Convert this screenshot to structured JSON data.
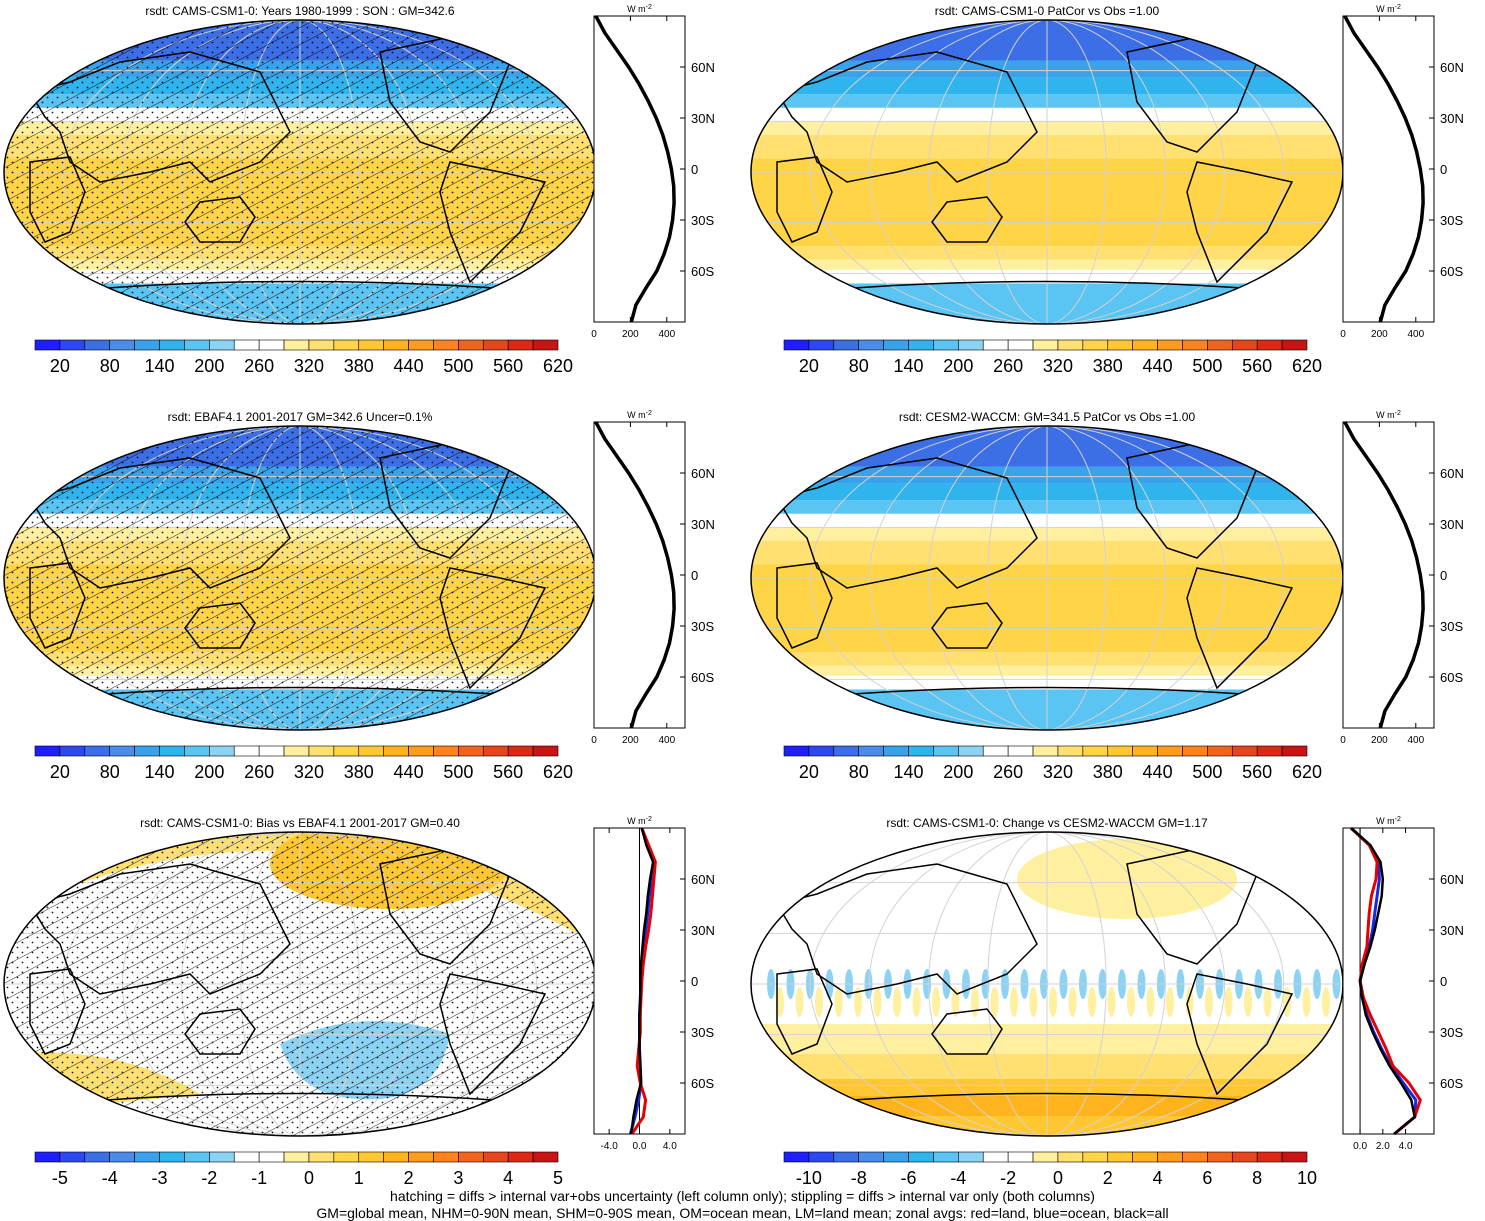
{
  "footer": {
    "line1": "hatching = diffs > internal var+obs uncertainty (left column only); stippling = diffs > internal var only (both columns)",
    "line2": "GM=global mean, NHM=0-90N mean, SHM=0-90S mean, OM=ocean mean, LM=land mean; zonal avgs: red=land, blue=ocean, black=all"
  },
  "colors": {
    "full_scale": [
      "#1e1eff",
      "#2d48f0",
      "#3c6ee6",
      "#4a8ce8",
      "#3aa2ea",
      "#30b4ee",
      "#5ac4f2",
      "#8cd2f2",
      "#ffffff",
      "#ffffff",
      "#fff0a0",
      "#ffe070",
      "#ffd446",
      "#ffc832",
      "#ffb41e",
      "#ff9b1e",
      "#ff821e",
      "#f0641e",
      "#e6461e",
      "#dc2814",
      "#c81414"
    ],
    "bias_scale": [
      "#1e1eff",
      "#2d48f0",
      "#3c6ee6",
      "#4a8ce8",
      "#3aa2ea",
      "#30b4ee",
      "#5ac4f2",
      "#8cd2f2",
      "#ffffff",
      "#ffffff",
      "#fff0a0",
      "#ffe070",
      "#ffd446",
      "#ffc832",
      "#ffb41e",
      "#ff9b1e",
      "#ff821e",
      "#f0641e",
      "#e6461e",
      "#dc2814",
      "#c81414"
    ],
    "zonal_all": "#000000",
    "zonal_land": "#e60000",
    "zonal_ocean": "#1428e6"
  },
  "panels": [
    {
      "id": "model-climatology",
      "title": "rsdt: CAMS-CSM1-0: Years 1980-1999 : SON : GM=342.6",
      "hatching": true,
      "stippling": true,
      "colorbar_labels": [
        "20",
        "80",
        "140",
        "200",
        "260",
        "320",
        "380",
        "440",
        "500",
        "560",
        "620"
      ],
      "zonal": {
        "unit": "W m",
        "unit_sup": "-2",
        "x_ticks": [
          "0",
          "200",
          "400"
        ],
        "x_range": [
          0,
          500
        ],
        "lat_ticks": [
          "60N",
          "30N",
          "0",
          "30S",
          "60S"
        ]
      }
    },
    {
      "id": "model-vs-obs-patcor",
      "title": "rsdt: CAMS-CSM1-0 PatCor vs Obs =1.00",
      "hatching": false,
      "stippling": false,
      "colorbar_labels": [
        "20",
        "80",
        "140",
        "200",
        "260",
        "320",
        "380",
        "440",
        "500",
        "560",
        "620"
      ],
      "zonal": {
        "unit": "W m",
        "unit_sup": "-2",
        "x_ticks": [
          "0",
          "200",
          "400"
        ],
        "x_range": [
          0,
          500
        ],
        "lat_ticks": [
          "60N",
          "30N",
          "0",
          "30S",
          "60S"
        ]
      }
    },
    {
      "id": "obs-climatology",
      "title": "rsdt: EBAF4.1 2001-2017 GM=342.6 Uncer=0.1%",
      "hatching": true,
      "stippling": true,
      "colorbar_labels": [
        "20",
        "80",
        "140",
        "200",
        "260",
        "320",
        "380",
        "440",
        "500",
        "560",
        "620"
      ],
      "zonal": {
        "unit": "W m",
        "unit_sup": "-2",
        "x_ticks": [
          "0",
          "200",
          "400"
        ],
        "x_range": [
          0,
          500
        ],
        "lat_ticks": [
          "60N",
          "30N",
          "0",
          "30S",
          "60S"
        ]
      }
    },
    {
      "id": "reference-model",
      "title": "rsdt: CESM2-WACCM: GM=341.5 PatCor vs Obs =1.00",
      "hatching": false,
      "stippling": false,
      "colorbar_labels": [
        "20",
        "80",
        "140",
        "200",
        "260",
        "320",
        "380",
        "440",
        "500",
        "560",
        "620"
      ],
      "zonal": {
        "unit": "W m",
        "unit_sup": "-2",
        "x_ticks": [
          "0",
          "200",
          "400"
        ],
        "x_range": [
          0,
          500
        ],
        "lat_ticks": [
          "60N",
          "30N",
          "0",
          "30S",
          "60S"
        ]
      }
    },
    {
      "id": "bias",
      "title": "rsdt: CAMS-CSM1-0: Bias vs EBAF4.1 2001-2017  GM=0.40",
      "hatching": true,
      "stippling": true,
      "colorbar_labels": [
        "-5",
        "-4",
        "-3",
        "-2",
        "-1",
        "0",
        "1",
        "2",
        "3",
        "4",
        "5"
      ],
      "zonal": {
        "unit": "W m",
        "unit_sup": "-2",
        "x_ticks": [
          "-4.0",
          "0.0",
          "4.0"
        ],
        "x_range": [
          -6,
          6
        ],
        "lat_ticks": [
          "60N",
          "30N",
          "0",
          "30S",
          "60S"
        ]
      }
    },
    {
      "id": "change",
      "title": "rsdt: CAMS-CSM1-0: Change vs CESM2-WACCM GM=1.17",
      "hatching": false,
      "stippling": false,
      "colorbar_labels": [
        "-10",
        "-8",
        "-6",
        "-4",
        "-2",
        "0",
        "2",
        "4",
        "6",
        "8",
        "10"
      ],
      "zonal": {
        "unit": "W m",
        "unit_sup": "-2",
        "x_ticks": [
          "0.0",
          "2.0",
          "4.0"
        ],
        "x_range": [
          -1.5,
          6.5
        ],
        "lat_ticks": [
          "60N",
          "30N",
          "0",
          "30S",
          "60S"
        ]
      }
    }
  ],
  "chart_data": [
    {
      "type": "line",
      "panel": "model-climatology",
      "x_label": "W m-2",
      "y_label": "",
      "lat": [
        -90,
        -80,
        -70,
        -60,
        -50,
        -40,
        -30,
        -20,
        -10,
        0,
        10,
        20,
        30,
        40,
        50,
        60,
        70,
        80,
        90
      ],
      "series": [
        {
          "values": [
            205,
            230,
            285,
            345,
            385,
            415,
            432,
            440,
            438,
            425,
            405,
            378,
            342,
            298,
            248,
            190,
            125,
            60,
            10
          ]
        }
      ]
    },
    {
      "type": "line",
      "panel": "model-vs-obs-patcor",
      "x_label": "W m-2",
      "y_label": "",
      "lat": [
        -90,
        -80,
        -70,
        -60,
        -50,
        -40,
        -30,
        -20,
        -10,
        0,
        10,
        20,
        30,
        40,
        50,
        60,
        70,
        80,
        90
      ],
      "series": [
        {
          "values": [
            205,
            230,
            285,
            345,
            385,
            415,
            432,
            440,
            438,
            425,
            405,
            378,
            342,
            298,
            248,
            190,
            125,
            60,
            10
          ]
        }
      ]
    },
    {
      "type": "line",
      "panel": "obs-climatology",
      "x_label": "W m-2",
      "y_label": "",
      "lat": [
        -90,
        -80,
        -70,
        -60,
        -50,
        -40,
        -30,
        -20,
        -10,
        0,
        10,
        20,
        30,
        40,
        50,
        60,
        70,
        80,
        90
      ],
      "series": [
        {
          "values": [
            205,
            230,
            285,
            345,
            385,
            415,
            432,
            440,
            438,
            425,
            405,
            378,
            342,
            298,
            248,
            190,
            125,
            60,
            10
          ]
        }
      ]
    },
    {
      "type": "line",
      "panel": "reference-model",
      "x_label": "W m-2",
      "y_label": "",
      "lat": [
        -90,
        -80,
        -70,
        -60,
        -50,
        -40,
        -30,
        -20,
        -10,
        0,
        10,
        20,
        30,
        40,
        50,
        60,
        70,
        80,
        90
      ],
      "series": [
        {
          "values": [
            205,
            230,
            285,
            345,
            385,
            415,
            432,
            440,
            438,
            425,
            405,
            378,
            342,
            298,
            248,
            190,
            125,
            60,
            10
          ]
        }
      ]
    },
    {
      "type": "line",
      "panel": "bias",
      "x_label": "W m-2",
      "y_label": "",
      "lat": [
        -90,
        -80,
        -70,
        -60,
        -50,
        -40,
        -30,
        -20,
        -10,
        0,
        10,
        20,
        30,
        40,
        50,
        60,
        70,
        80,
        90
      ],
      "series": [
        {
          "values": [
            -1.2,
            -0.6,
            -0.1,
            0.2,
            0.1,
            0.0,
            0.0,
            0.0,
            0.1,
            0.2,
            0.3,
            0.5,
            0.8,
            1.1,
            1.3,
            1.6,
            1.9,
            1.0,
            0.3
          ]
        },
        {
          "values": [
            -1.0,
            0.5,
            0.8,
            0.1,
            -0.3,
            -0.1,
            0.1,
            0.1,
            0.2,
            0.3,
            0.5,
            0.8,
            1.2,
            1.5,
            1.7,
            1.9,
            2.1,
            1.2,
            0.3
          ]
        },
        {
          "values": [
            -1.1,
            -0.8,
            -0.4,
            0.2,
            0.1,
            0.0,
            0.0,
            0.0,
            0.1,
            0.1,
            0.2,
            0.4,
            0.6,
            0.9,
            1.1,
            1.4,
            1.8,
            0.9,
            0.3
          ]
        }
      ]
    },
    {
      "type": "line",
      "panel": "change",
      "x_label": "W m-2",
      "y_label": "",
      "lat": [
        -90,
        -80,
        -70,
        -60,
        -50,
        -40,
        -30,
        -20,
        -10,
        0,
        10,
        20,
        30,
        40,
        50,
        60,
        70,
        80,
        90
      ],
      "series": [
        {
          "values": [
            3.0,
            4.8,
            4.9,
            3.8,
            2.7,
            1.9,
            1.2,
            0.6,
            0.2,
            0.0,
            0.3,
            0.8,
            1.1,
            1.3,
            1.5,
            1.7,
            1.6,
            0.8,
            -0.8
          ]
        },
        {
          "values": [
            3.0,
            4.8,
            5.3,
            4.3,
            2.9,
            2.3,
            1.6,
            0.9,
            0.3,
            0.0,
            0.2,
            0.6,
            0.7,
            0.8,
            1.0,
            1.4,
            1.5,
            0.8,
            -0.8
          ]
        },
        {
          "values": [
            3.0,
            4.8,
            4.5,
            3.6,
            2.6,
            1.8,
            1.1,
            0.5,
            0.2,
            0.0,
            0.4,
            0.9,
            1.3,
            1.6,
            1.9,
            2.0,
            1.8,
            0.9,
            -0.8
          ]
        }
      ]
    }
  ]
}
